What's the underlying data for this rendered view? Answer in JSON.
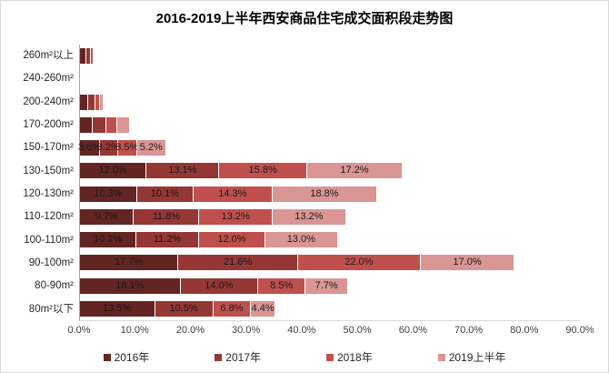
{
  "title": "2016-2019上半年西安商品住宅成交面积段走势图",
  "chart_data": {
    "type": "bar",
    "orientation": "horizontal-stacked",
    "title": "2016-2019上半年西安商品住宅成交面积段走势图",
    "categories": [
      "260m²以上",
      "240-260m²",
      "200-240m²",
      "170-200m²",
      "150-170m²",
      "130-150m²",
      "120-130m²",
      "110-120m²",
      "100-110m²",
      "90-100m²",
      "80-90m²",
      "80m²以下"
    ],
    "series": [
      {
        "name": "2016年",
        "color": "#632523",
        "values": [
          1.1,
          0.1,
          1.5,
          2.3,
          3.6,
          12.0,
          10.3,
          9.7,
          10.2,
          17.7,
          18.1,
          13.5
        ]
      },
      {
        "name": "2017年",
        "color": "#953735",
        "values": [
          0.8,
          0.1,
          1.3,
          2.4,
          3.2,
          13.1,
          10.1,
          11.8,
          11.2,
          21.6,
          14.0,
          10.5
        ]
      },
      {
        "name": "2018年",
        "color": "#c0504d",
        "values": [
          0.5,
          0.1,
          0.8,
          2.0,
          3.5,
          15.8,
          14.3,
          13.2,
          12.0,
          22.0,
          8.5,
          6.8
        ]
      },
      {
        "name": "2019上半年",
        "color": "#d99694",
        "values": [
          0.2,
          0.2,
          0.7,
          2.3,
          5.2,
          17.2,
          18.8,
          13.2,
          13.0,
          17.0,
          7.7,
          4.4
        ]
      }
    ],
    "labels_visible_from_row": 4,
    "label_suffix": "%",
    "xlim": [
      0,
      90
    ],
    "x_ticks": [
      "0.0%",
      "10.0%",
      "20.0%",
      "30.0%",
      "40.0%",
      "50.0%",
      "60.0%",
      "70.0%",
      "80.0%",
      "90.0%"
    ],
    "xlabel": "",
    "ylabel": "",
    "grid": false,
    "legend_position": "bottom",
    "label_color": "#1a1a1a",
    "axis_line_color": "#a6a6a6"
  }
}
